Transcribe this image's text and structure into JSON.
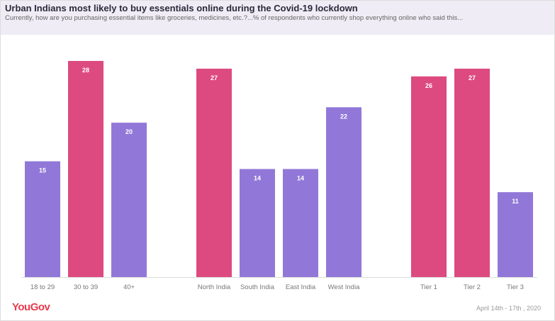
{
  "chart_data": {
    "type": "bar",
    "title": "Urban Indians most likely to buy essentials online during the Covid-19 lockdown",
    "subtitle": "Currently, how are you purchasing essential items like groceries, medicines, etc.?...% of respondents who currently shop everything online who said this...",
    "groups": [
      {
        "categories": [
          "18 to 29",
          "30 to 39",
          "40+"
        ],
        "values": [
          15,
          28,
          20
        ],
        "highlight": [
          false,
          true,
          false
        ]
      },
      {
        "categories": [
          "North India",
          "South India",
          "East India",
          "West India"
        ],
        "values": [
          27,
          14,
          14,
          22
        ],
        "highlight": [
          true,
          false,
          false,
          false
        ]
      },
      {
        "categories": [
          "Tier 1",
          "Tier 2",
          "Tier 3"
        ],
        "values": [
          26,
          27,
          11
        ],
        "highlight": [
          true,
          true,
          false
        ]
      }
    ],
    "ylim": [
      0,
      28
    ],
    "grid": false,
    "colors": {
      "default": "#9178d8",
      "highlight": "#dc4a80"
    }
  },
  "footer": {
    "logo": "YouGov",
    "date": "April 14th - 17th , 2020"
  }
}
